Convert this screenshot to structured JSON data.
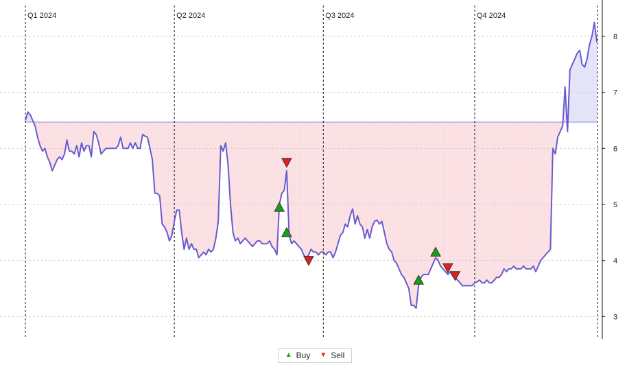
{
  "chart_data": {
    "type": "line",
    "x_unit": "trading day index across 2024",
    "x_range": [
      0,
      250
    ],
    "y_range": [
      2.6,
      8.6
    ],
    "y_ticks": [
      3,
      4,
      5,
      6,
      7,
      8
    ],
    "y_tick_labels": [
      "3",
      "4",
      "5",
      "6",
      "7",
      "8"
    ],
    "quarters": [
      {
        "label": "Q1 2024",
        "x": 0
      },
      {
        "label": "Q2 2024",
        "x": 61
      },
      {
        "label": "Q3 2024",
        "x": 122
      },
      {
        "label": "Q4 2024",
        "x": 184
      }
    ],
    "baseline": 6.47,
    "fill_colors": {
      "above": "#e3e3fa",
      "below": "#fbe0e3"
    },
    "line_color": "#6a5acd",
    "baseline_color": "#8a8ae8",
    "grid": true,
    "series": [
      {
        "points": [
          [
            0,
            6.5
          ],
          [
            1,
            6.65
          ],
          [
            2,
            6.6
          ],
          [
            3,
            6.5
          ],
          [
            4,
            6.4
          ],
          [
            5,
            6.2
          ],
          [
            6,
            6.05
          ],
          [
            7,
            5.95
          ],
          [
            8,
            6.0
          ],
          [
            9,
            5.85
          ],
          [
            10,
            5.75
          ],
          [
            11,
            5.6
          ],
          [
            12,
            5.7
          ],
          [
            13,
            5.8
          ],
          [
            14,
            5.85
          ],
          [
            15,
            5.8
          ],
          [
            16,
            5.9
          ],
          [
            17,
            6.15
          ],
          [
            18,
            5.95
          ],
          [
            19,
            5.95
          ],
          [
            20,
            5.9
          ],
          [
            21,
            6.05
          ],
          [
            22,
            5.85
          ],
          [
            23,
            6.1
          ],
          [
            24,
            5.95
          ],
          [
            25,
            6.05
          ],
          [
            26,
            6.05
          ],
          [
            27,
            5.85
          ],
          [
            28,
            6.3
          ],
          [
            29,
            6.25
          ],
          [
            30,
            6.1
          ],
          [
            31,
            5.9
          ],
          [
            32,
            5.95
          ],
          [
            33,
            6.0
          ],
          [
            34,
            6.0
          ],
          [
            35,
            6.0
          ],
          [
            36,
            6.0
          ],
          [
            37,
            6.0
          ],
          [
            38,
            6.05
          ],
          [
            39,
            6.2
          ],
          [
            40,
            6.0
          ],
          [
            41,
            6.0
          ],
          [
            42,
            6.0
          ],
          [
            43,
            6.1
          ],
          [
            44,
            6.0
          ],
          [
            45,
            6.1
          ],
          [
            46,
            6.0
          ],
          [
            47,
            6.0
          ],
          [
            48,
            6.25
          ],
          [
            49,
            6.22
          ],
          [
            50,
            6.2
          ],
          [
            51,
            6.0
          ],
          [
            52,
            5.8
          ],
          [
            53,
            5.2
          ],
          [
            54,
            5.2
          ],
          [
            55,
            5.15
          ],
          [
            56,
            4.65
          ],
          [
            57,
            4.6
          ],
          [
            58,
            4.5
          ],
          [
            59,
            4.35
          ],
          [
            60,
            4.45
          ],
          [
            61,
            4.7
          ],
          [
            62,
            4.9
          ],
          [
            63,
            4.9
          ],
          [
            64,
            4.5
          ],
          [
            65,
            4.2
          ],
          [
            66,
            4.4
          ],
          [
            67,
            4.2
          ],
          [
            68,
            4.3
          ],
          [
            69,
            4.2
          ],
          [
            70,
            4.2
          ],
          [
            71,
            4.05
          ],
          [
            72,
            4.1
          ],
          [
            73,
            4.15
          ],
          [
            74,
            4.1
          ],
          [
            75,
            4.2
          ],
          [
            76,
            4.15
          ],
          [
            77,
            4.2
          ],
          [
            78,
            4.4
          ],
          [
            79,
            4.7
          ],
          [
            80,
            6.05
          ],
          [
            81,
            5.95
          ],
          [
            82,
            6.1
          ],
          [
            83,
            5.7
          ],
          [
            84,
            5.0
          ],
          [
            85,
            4.5
          ],
          [
            86,
            4.35
          ],
          [
            87,
            4.4
          ],
          [
            88,
            4.3
          ],
          [
            89,
            4.35
          ],
          [
            90,
            4.4
          ],
          [
            91,
            4.35
          ],
          [
            92,
            4.3
          ],
          [
            93,
            4.25
          ],
          [
            94,
            4.3
          ],
          [
            95,
            4.35
          ],
          [
            96,
            4.35
          ],
          [
            97,
            4.3
          ],
          [
            98,
            4.3
          ],
          [
            99,
            4.3
          ],
          [
            100,
            4.35
          ],
          [
            101,
            4.25
          ],
          [
            102,
            4.2
          ],
          [
            103,
            4.1
          ],
          [
            104,
            5.0
          ],
          [
            105,
            5.2
          ],
          [
            106,
            5.25
          ],
          [
            107,
            5.6
          ],
          [
            108,
            4.45
          ],
          [
            109,
            4.3
          ],
          [
            110,
            4.35
          ],
          [
            111,
            4.3
          ],
          [
            112,
            4.25
          ],
          [
            113,
            4.2
          ],
          [
            114,
            4.1
          ],
          [
            115,
            4.05
          ],
          [
            116,
            4.1
          ],
          [
            117,
            4.2
          ],
          [
            118,
            4.15
          ],
          [
            119,
            4.15
          ],
          [
            120,
            4.1
          ],
          [
            121,
            4.15
          ],
          [
            122,
            4.15
          ],
          [
            123,
            4.1
          ],
          [
            124,
            4.15
          ],
          [
            125,
            4.15
          ],
          [
            126,
            4.05
          ],
          [
            127,
            4.15
          ],
          [
            128,
            4.3
          ],
          [
            129,
            4.45
          ],
          [
            130,
            4.5
          ],
          [
            131,
            4.65
          ],
          [
            132,
            4.6
          ],
          [
            133,
            4.8
          ],
          [
            134,
            4.92
          ],
          [
            135,
            4.65
          ],
          [
            136,
            4.8
          ],
          [
            137,
            4.65
          ],
          [
            138,
            4.6
          ],
          [
            139,
            4.4
          ],
          [
            140,
            4.55
          ],
          [
            141,
            4.4
          ],
          [
            142,
            4.6
          ],
          [
            143,
            4.7
          ],
          [
            144,
            4.72
          ],
          [
            145,
            4.65
          ],
          [
            146,
            4.7
          ],
          [
            147,
            4.5
          ],
          [
            148,
            4.3
          ],
          [
            149,
            4.2
          ],
          [
            150,
            4.15
          ],
          [
            151,
            4.0
          ],
          [
            152,
            3.95
          ],
          [
            153,
            3.85
          ],
          [
            154,
            3.75
          ],
          [
            155,
            3.7
          ],
          [
            156,
            3.6
          ],
          [
            157,
            3.5
          ],
          [
            158,
            3.2
          ],
          [
            159,
            3.2
          ],
          [
            160,
            3.15
          ],
          [
            161,
            3.55
          ],
          [
            162,
            3.7
          ],
          [
            163,
            3.75
          ],
          [
            164,
            3.75
          ],
          [
            165,
            3.75
          ],
          [
            166,
            3.85
          ],
          [
            167,
            3.95
          ],
          [
            168,
            4.05
          ],
          [
            169,
            4.0
          ],
          [
            170,
            3.9
          ],
          [
            171,
            3.85
          ],
          [
            172,
            3.8
          ],
          [
            173,
            3.75
          ],
          [
            174,
            3.8
          ],
          [
            175,
            3.72
          ],
          [
            176,
            3.68
          ],
          [
            177,
            3.65
          ],
          [
            178,
            3.6
          ],
          [
            179,
            3.55
          ],
          [
            180,
            3.55
          ],
          [
            181,
            3.55
          ],
          [
            182,
            3.55
          ],
          [
            183,
            3.55
          ],
          [
            184,
            3.6
          ],
          [
            185,
            3.62
          ],
          [
            186,
            3.65
          ],
          [
            187,
            3.6
          ],
          [
            188,
            3.6
          ],
          [
            189,
            3.65
          ],
          [
            190,
            3.6
          ],
          [
            191,
            3.6
          ],
          [
            192,
            3.65
          ],
          [
            193,
            3.7
          ],
          [
            194,
            3.7
          ],
          [
            195,
            3.75
          ],
          [
            196,
            3.85
          ],
          [
            197,
            3.8
          ],
          [
            198,
            3.85
          ],
          [
            199,
            3.85
          ],
          [
            200,
            3.9
          ],
          [
            201,
            3.85
          ],
          [
            202,
            3.85
          ],
          [
            203,
            3.85
          ],
          [
            204,
            3.9
          ],
          [
            205,
            3.85
          ],
          [
            206,
            3.85
          ],
          [
            207,
            3.85
          ],
          [
            208,
            3.9
          ],
          [
            209,
            3.8
          ],
          [
            210,
            3.9
          ],
          [
            211,
            4.0
          ],
          [
            212,
            4.05
          ],
          [
            213,
            4.1
          ],
          [
            214,
            4.15
          ],
          [
            215,
            4.2
          ],
          [
            216,
            6.0
          ],
          [
            217,
            5.9
          ],
          [
            218,
            6.2
          ],
          [
            219,
            6.3
          ],
          [
            220,
            6.4
          ],
          [
            221,
            7.1
          ],
          [
            222,
            6.3
          ],
          [
            223,
            7.4
          ],
          [
            224,
            7.5
          ],
          [
            225,
            7.6
          ],
          [
            226,
            7.7
          ],
          [
            227,
            7.75
          ],
          [
            228,
            7.5
          ],
          [
            229,
            7.45
          ],
          [
            230,
            7.6
          ],
          [
            231,
            7.85
          ],
          [
            232,
            8.0
          ],
          [
            233,
            8.25
          ],
          [
            234,
            7.9
          ]
        ]
      }
    ],
    "buy_signals": [
      [
        104,
        4.95
      ],
      [
        107,
        4.5
      ],
      [
        161,
        3.65
      ],
      [
        168,
        4.15
      ]
    ],
    "sell_signals": [
      [
        107,
        5.75
      ],
      [
        116,
        4.0
      ],
      [
        173,
        3.87
      ],
      [
        176,
        3.73
      ]
    ],
    "legend": [
      {
        "label": "Buy",
        "color": "#18a018",
        "marker": "▲"
      },
      {
        "label": "Sell",
        "color": "#e02020",
        "marker": "▼"
      }
    ]
  }
}
